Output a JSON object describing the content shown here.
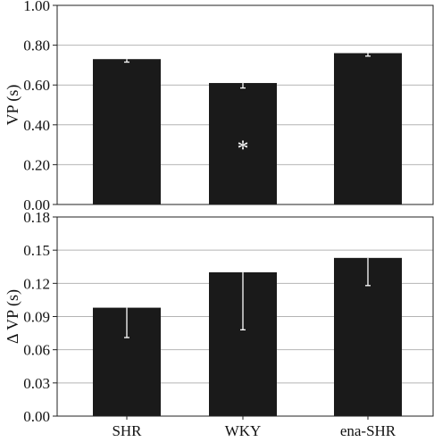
{
  "chart_data": [
    {
      "type": "bar",
      "categories": [
        "SHR",
        "WKY",
        "ena-SHR"
      ],
      "values": [
        0.73,
        0.61,
        0.76
      ],
      "error_lower": [
        0.715,
        0.585,
        0.745
      ],
      "error_upper": [
        0.73,
        0.61,
        0.76
      ],
      "ylabel": "VP (s)",
      "ylim": [
        0.0,
        1.0
      ],
      "yticks": [
        "0.00",
        "0.20",
        "0.40",
        "0.60",
        "0.80",
        "1.00"
      ],
      "annotations": [
        {
          "category": "WKY",
          "text": "*"
        }
      ],
      "grid": true,
      "bar_color": "#1a1a1a"
    },
    {
      "type": "bar",
      "categories": [
        "SHR",
        "WKY",
        "ena-SHR"
      ],
      "values": [
        0.098,
        0.13,
        0.143
      ],
      "error_lower": [
        0.071,
        0.078,
        0.118
      ],
      "error_upper": [
        0.098,
        0.13,
        0.143
      ],
      "ylabel": "Δ VP (s)",
      "ylim": [
        0.0,
        0.18
      ],
      "yticks": [
        "0.00",
        "0.03",
        "0.06",
        "0.09",
        "0.12",
        "0.15",
        "0.18"
      ],
      "grid": true,
      "bar_color": "#1a1a1a"
    }
  ]
}
